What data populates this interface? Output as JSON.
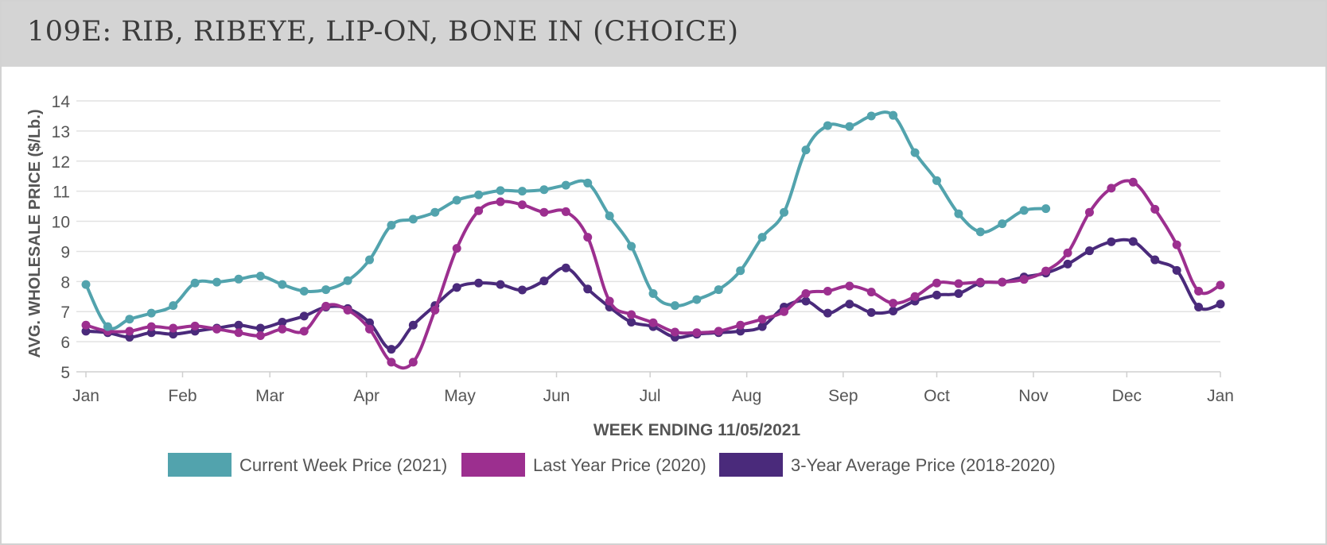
{
  "header": {
    "title": "109E: RIB, RIBEYE, LIP-ON, BONE IN (CHOICE)"
  },
  "chart_data": {
    "type": "line",
    "xlabel": "WEEK ENDING 11/05/2021",
    "ylabel": "AVG. WHOLESALE PRICE ($/Lb.)",
    "ylim": [
      5,
      14
    ],
    "yticks": [
      5,
      6,
      7,
      8,
      9,
      10,
      11,
      12,
      13,
      14
    ],
    "xlim": [
      0,
      52
    ],
    "xticks": [
      {
        "label": "Jan",
        "week": 0
      },
      {
        "label": "Feb",
        "week": 4.43
      },
      {
        "label": "Mar",
        "week": 8.43
      },
      {
        "label": "Apr",
        "week": 12.86
      },
      {
        "label": "May",
        "week": 17.14
      },
      {
        "label": "Jun",
        "week": 21.57
      },
      {
        "label": "Jul",
        "week": 25.86
      },
      {
        "label": "Aug",
        "week": 30.29
      },
      {
        "label": "Sep",
        "week": 34.71
      },
      {
        "label": "Oct",
        "week": 39
      },
      {
        "label": "Nov",
        "week": 43.43
      },
      {
        "label": "Dec",
        "week": 47.71
      },
      {
        "label": "Jan",
        "week": 52
      }
    ],
    "grid": true,
    "legend_position": "bottom",
    "series": [
      {
        "name": "Current Week Price (2021)",
        "color": "#52a3ad",
        "x": [
          0,
          1,
          2,
          3,
          4,
          5,
          6,
          7,
          8,
          9,
          10,
          11,
          12,
          13,
          14,
          15,
          16,
          17,
          18,
          19,
          20,
          21,
          22,
          23,
          24,
          25,
          26,
          27,
          28,
          29,
          30,
          31,
          32,
          33,
          34,
          35,
          36,
          37,
          38,
          39,
          40,
          41,
          42,
          43,
          44
        ],
        "values": [
          7.9,
          6.5,
          6.75,
          6.95,
          7.2,
          7.95,
          7.98,
          8.08,
          8.18,
          7.9,
          7.68,
          7.73,
          8.03,
          8.72,
          9.87,
          10.07,
          10.3,
          10.7,
          10.88,
          11.02,
          11.0,
          11.05,
          11.2,
          11.27,
          10.18,
          9.17,
          7.6,
          7.2,
          7.4,
          7.73,
          8.36,
          9.47,
          10.3,
          12.37,
          13.18,
          13.15,
          13.5,
          13.52,
          12.28,
          11.35,
          10.25,
          9.65,
          9.92,
          10.36,
          10.42
        ]
      },
      {
        "name": "Last Year Price (2020)",
        "color": "#9c2f8f",
        "x": [
          0,
          1,
          2,
          3,
          4,
          5,
          6,
          7,
          8,
          9,
          10,
          11,
          12,
          13,
          14,
          15,
          16,
          17,
          18,
          19,
          20,
          21,
          22,
          23,
          24,
          25,
          26,
          27,
          28,
          29,
          30,
          31,
          32,
          33,
          34,
          35,
          36,
          37,
          38,
          39,
          40,
          41,
          42,
          43,
          44,
          45,
          46,
          47,
          48,
          49,
          50,
          51,
          52
        ],
        "values": [
          6.55,
          6.35,
          6.35,
          6.5,
          6.45,
          6.52,
          6.42,
          6.3,
          6.2,
          6.42,
          6.35,
          7.18,
          7.05,
          6.42,
          5.32,
          5.32,
          7.05,
          9.1,
          10.35,
          10.65,
          10.55,
          10.3,
          10.32,
          9.47,
          7.35,
          6.9,
          6.63,
          6.32,
          6.3,
          6.35,
          6.55,
          6.75,
          7.0,
          7.6,
          7.68,
          7.85,
          7.65,
          7.28,
          7.5,
          7.95,
          7.93,
          7.98,
          7.98,
          8.07,
          8.35,
          8.95,
          10.3,
          11.1,
          11.3,
          10.4,
          9.22,
          7.68,
          7.88
        ]
      },
      {
        "name": "3-Year Average Price (2018-2020)",
        "color": "#4a2a7b",
        "x": [
          0,
          1,
          2,
          3,
          4,
          5,
          6,
          7,
          8,
          9,
          10,
          11,
          12,
          13,
          14,
          15,
          16,
          17,
          18,
          19,
          20,
          21,
          22,
          23,
          24,
          25,
          26,
          27,
          28,
          29,
          30,
          31,
          32,
          33,
          34,
          35,
          36,
          37,
          38,
          39,
          40,
          41,
          42,
          43,
          44,
          45,
          46,
          47,
          48,
          49,
          50,
          51,
          52
        ],
        "values": [
          6.35,
          6.3,
          6.15,
          6.3,
          6.25,
          6.35,
          6.45,
          6.55,
          6.45,
          6.65,
          6.85,
          7.15,
          7.1,
          6.63,
          5.75,
          6.55,
          7.2,
          7.8,
          7.95,
          7.9,
          7.72,
          8.02,
          8.45,
          7.75,
          7.15,
          6.65,
          6.5,
          6.15,
          6.25,
          6.3,
          6.35,
          6.5,
          7.15,
          7.35,
          6.95,
          7.25,
          6.97,
          7.02,
          7.35,
          7.55,
          7.6,
          7.95,
          7.98,
          8.15,
          8.28,
          8.58,
          9.02,
          9.32,
          9.33,
          8.72,
          8.37,
          7.15,
          7.25
        ]
      }
    ]
  }
}
